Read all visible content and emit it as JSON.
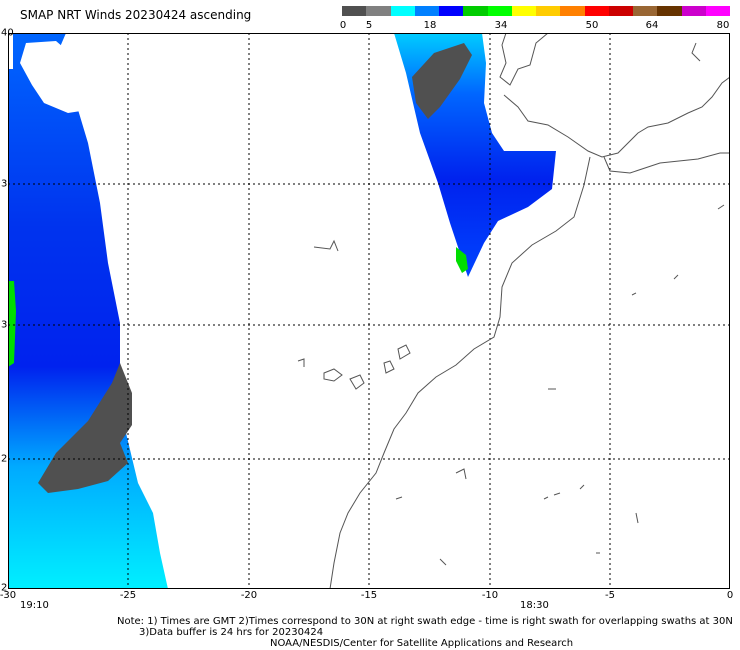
{
  "title": "SMAP NRT Winds 20230424 ascending",
  "colorbar": {
    "labels": [
      "0",
      "5",
      "18",
      "34",
      "50",
      "64",
      "80"
    ],
    "colors": [
      "#505050",
      "#808080",
      "#00ffff",
      "#0080ff",
      "#0000ff",
      "#00cc00",
      "#00ff00",
      "#ffff00",
      "#ffcc00",
      "#ff8000",
      "#ff0000",
      "#cc0000",
      "#996633",
      "#663300",
      "#cc00cc",
      "#ff00ff"
    ]
  },
  "axes": {
    "lon_labels": [
      "-30",
      "-25",
      "-20",
      "-15",
      "-10",
      "-5",
      "0"
    ],
    "lat_labels": [
      "40",
      "3",
      "3",
      "2",
      "2"
    ]
  },
  "swath_times": {
    "left": "19:10",
    "right": "18:30"
  },
  "note": {
    "line1": "Note: 1) Times are GMT 2)Times correspond to 30N at right swath edge - time is right swath for overlapping swaths at 30N",
    "line2": "3)Data buffer is 24 hrs for 20230424"
  },
  "credit": "NOAA/NESDIS/Center for Satellite Applications and Research"
}
